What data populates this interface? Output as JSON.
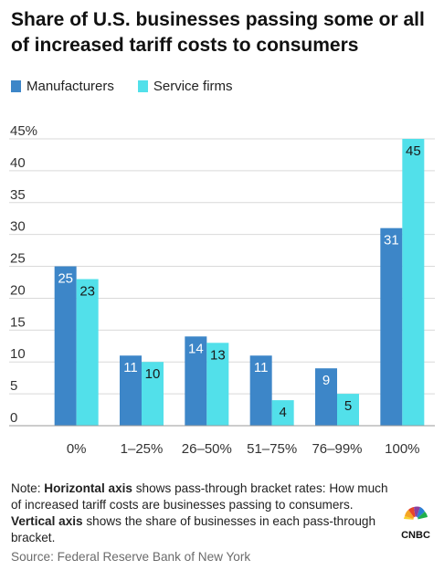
{
  "title": "Share of U.S. businesses passing some or all of increased tariff costs to consumers",
  "note": {
    "prefix": "Note: ",
    "h_axis_label": "Horizontal axis",
    "h_axis_text": " shows pass-through bracket rates: How much of increased tariff costs are businesses passing to consumers. ",
    "v_axis_label": "Vertical axis",
    "v_axis_text": " shows the share of businesses in each pass-through bracket."
  },
  "source": "Source: Federal Reserve Bank of New York",
  "logo": {
    "text": "CNBC"
  },
  "chart_data": {
    "type": "bar",
    "categories": [
      "0%",
      "1–25%",
      "26–50%",
      "51–75%",
      "76–99%",
      "100%"
    ],
    "series": [
      {
        "name": "Manufacturers",
        "color": "#3d86c8",
        "values": [
          25,
          11,
          14,
          11,
          9,
          31
        ]
      },
      {
        "name": "Service firms",
        "color": "#52e0ea",
        "values": [
          23,
          10,
          13,
          4,
          5,
          45
        ]
      }
    ],
    "y_ticks": [
      "0",
      "5",
      "10",
      "15",
      "20",
      "25",
      "30",
      "35",
      "40",
      "45%"
    ],
    "ylim": [
      0,
      45
    ],
    "grid": true,
    "legend": "top-left",
    "xlabel": "",
    "ylabel": ""
  }
}
